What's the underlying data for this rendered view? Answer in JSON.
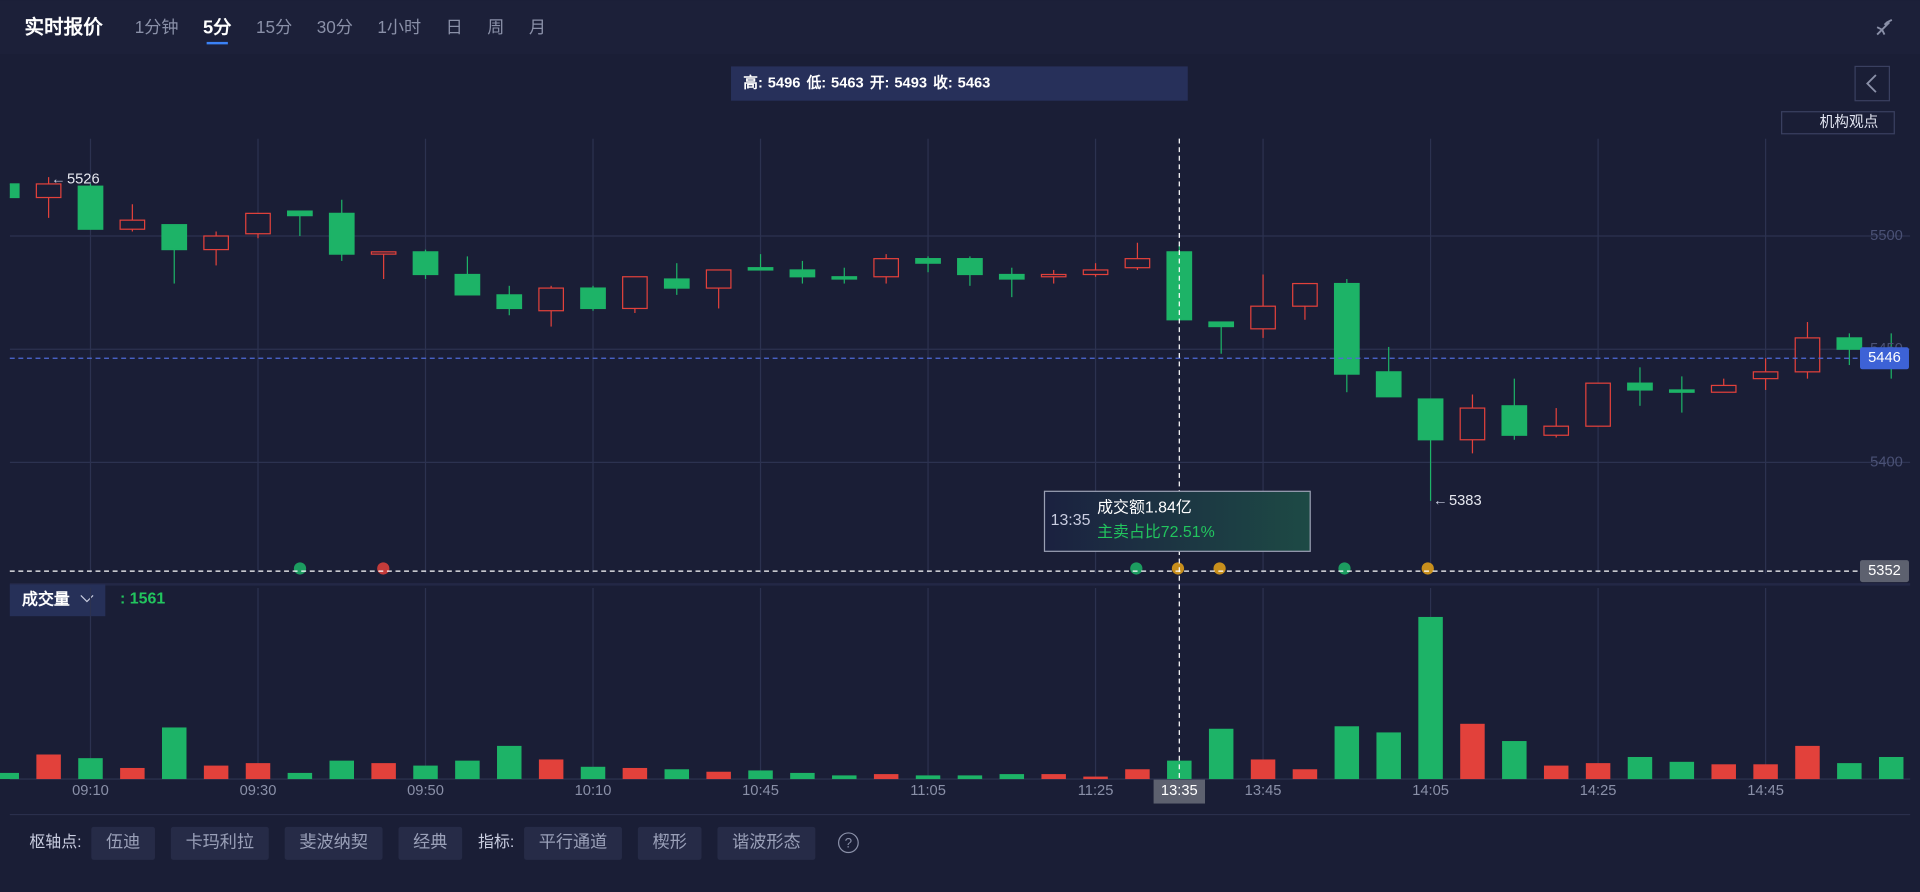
{
  "header": {
    "title": "实时报价",
    "tabs": [
      "1分钟",
      "5分",
      "15分",
      "30分",
      "1小时",
      "日",
      "周",
      "月"
    ],
    "active_tab": 1
  },
  "side_button": "机构观点",
  "chart_data": {
    "type": "candlestick",
    "ohlc_labels": [
      "高:",
      "低:",
      "开:",
      "收:"
    ],
    "categories": [
      null,
      null,
      "09:10",
      null,
      null,
      null,
      "09:30",
      null,
      null,
      null,
      "09:50",
      null,
      null,
      null,
      "10:10",
      null,
      null,
      null,
      "10:45",
      null,
      null,
      null,
      "11:05",
      null,
      null,
      null,
      "11:25",
      null,
      "13:35",
      null,
      "13:45",
      null,
      null,
      null,
      "14:05",
      null,
      null,
      null,
      "14:25",
      null,
      null,
      null,
      "14:45",
      null,
      null,
      null
    ],
    "open": [
      5523,
      5517,
      5522,
      5503,
      5505,
      5494,
      5501,
      5511,
      5510,
      5492,
      5493,
      5483,
      5474,
      5467,
      5477,
      5468,
      5481,
      5477,
      5486,
      5485,
      5482,
      5482,
      5490,
      5490,
      5483,
      5482,
      5483,
      5486,
      5493,
      5462,
      5459,
      5469,
      5479,
      5440,
      5428,
      5410,
      5425,
      5412,
      5416,
      5435,
      5432,
      5431,
      5437,
      5440,
      5455,
      5450
    ],
    "high": [
      5523,
      5526,
      5523,
      5514,
      5505,
      5502,
      5510,
      5511,
      5516,
      5493,
      5494,
      5491,
      5478,
      5478,
      5478,
      5482,
      5488,
      5485,
      5492,
      5489,
      5486,
      5492,
      5491,
      5491,
      5486,
      5485,
      5488,
      5497,
      5496,
      5462,
      5483,
      5479,
      5481,
      5451,
      5428,
      5430,
      5437,
      5424,
      5435,
      5442,
      5438,
      5437,
      5446,
      5462,
      5457,
      5457
    ],
    "low": [
      5517,
      5508,
      5503,
      5502,
      5479,
      5487,
      5499,
      5500,
      5489,
      5481,
      5481,
      5474,
      5465,
      5460,
      5467,
      5466,
      5474,
      5468,
      5485,
      5479,
      5479,
      5479,
      5484,
      5478,
      5473,
      5479,
      5482,
      5485,
      5463,
      5448,
      5455,
      5463,
      5431,
      5429,
      5383,
      5404,
      5410,
      5411,
      5416,
      5425,
      5422,
      5431,
      5432,
      5437,
      5443,
      5437
    ],
    "close": [
      5517,
      5523,
      5503,
      5507,
      5494,
      5500,
      5510,
      5509,
      5492,
      5493,
      5483,
      5474,
      5468,
      5477,
      5468,
      5482,
      5477,
      5485,
      5485,
      5482,
      5481,
      5490,
      5488,
      5483,
      5481,
      5483,
      5485,
      5490,
      5463,
      5460,
      5469,
      5479,
      5439,
      5429,
      5410,
      5424,
      5412,
      5416,
      5435,
      5432,
      5431,
      5434,
      5440,
      5455,
      5450,
      5446
    ],
    "volume": [
      520,
      2080,
      1770,
      940,
      4370,
      1140,
      1350,
      520,
      1560,
      1350,
      1140,
      1560,
      2810,
      1660,
      1040,
      940,
      830,
      620,
      730,
      520,
      310,
      420,
      310,
      310,
      420,
      420,
      210,
      830,
      1561,
      4260,
      1660,
      830,
      4470,
      3950,
      13730,
      4680,
      3220,
      1140,
      1350,
      1870,
      1460,
      1250,
      1250,
      2810,
      1350,
      1870
    ],
    "selected": 28,
    "up_color": "#e2413b",
    "down_color": "#1db367",
    "ylim": [
      5351,
      5543
    ],
    "yticks": [
      5400,
      5450,
      5500
    ],
    "volume_ylim": [
      0,
      14000
    ],
    "grid": true,
    "current_price": 5446,
    "crosshair_price": 5352,
    "high_mark": 5526,
    "low_mark": 5383,
    "volume_label": "成交量",
    "volume_prefix": ":",
    "tooltip": {
      "amount": "成交额1.84亿",
      "sell_ratio": "主卖占比72.51%"
    }
  },
  "toolbar": {
    "pivot_label": "枢轴点:",
    "pivots": [
      "伍迪",
      "卡玛利拉",
      "斐波纳契",
      "经典"
    ],
    "indicator_label": "指标:",
    "indicators": [
      "平行通道",
      "楔形",
      "谐波形态"
    ],
    "help": "?"
  }
}
